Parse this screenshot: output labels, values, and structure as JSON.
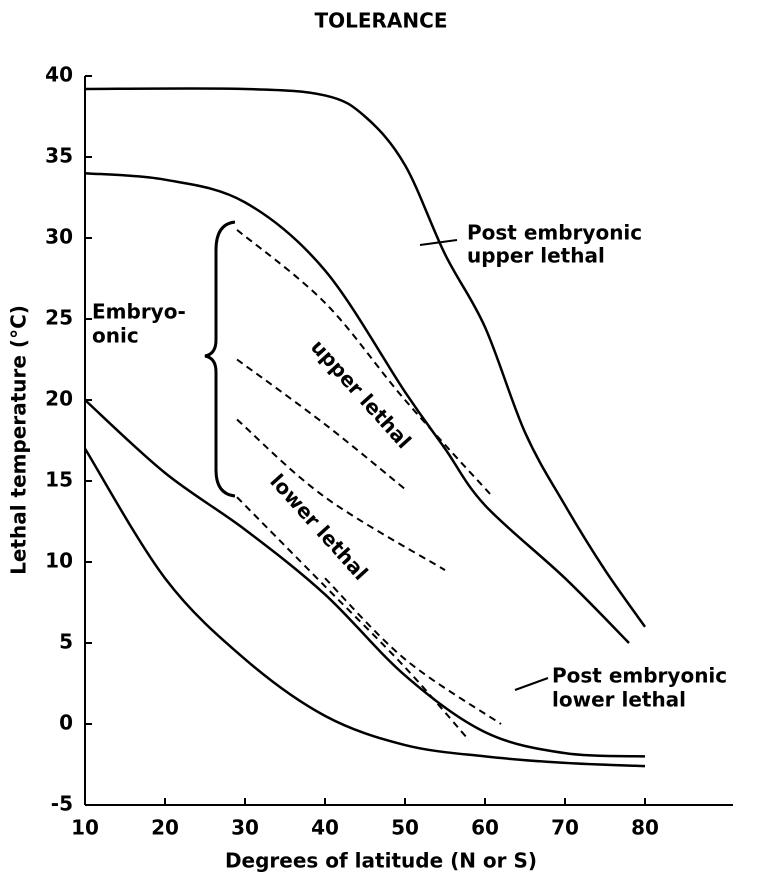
{
  "chart_data": {
    "type": "line",
    "title": "TOLERANCE",
    "x_label": "Degrees of latitude  (N or S)",
    "y_label": "Lethal temperature (°C)",
    "xlim": [
      10,
      91
    ],
    "ylim": [
      -5,
      40
    ],
    "xticks": [
      10,
      20,
      30,
      40,
      50,
      60,
      70,
      80
    ],
    "yticks": [
      -5,
      0,
      5,
      10,
      15,
      20,
      25,
      30,
      35,
      40
    ],
    "color": "#000000",
    "series": [
      {
        "x": [
          10,
          30,
          40,
          45,
          50,
          55,
          60,
          65,
          70,
          75,
          80
        ],
        "values": [
          39.2,
          39.2,
          38.8,
          37.5,
          34.5,
          29,
          24.5,
          18,
          13.5,
          9.5,
          6
        ],
        "dashed": false
      },
      {
        "x": [
          10,
          20,
          30,
          40,
          50,
          55,
          60,
          70,
          78
        ],
        "values": [
          34,
          33.6,
          32.2,
          28,
          20.5,
          17,
          13.5,
          9,
          5
        ],
        "dashed": false
      },
      {
        "x": [
          10,
          20,
          30,
          40,
          50,
          60,
          70,
          80
        ],
        "values": [
          20,
          15.5,
          12,
          8,
          3,
          -0.5,
          -1.8,
          -2
        ],
        "dashed": false
      },
      {
        "x": [
          10,
          20,
          30,
          40,
          50,
          60,
          70,
          80
        ],
        "values": [
          17,
          9,
          4,
          0.5,
          -1.3,
          -2,
          -2.4,
          -2.6
        ],
        "dashed": false
      },
      {
        "x": [
          29,
          40,
          50,
          61
        ],
        "values": [
          30.5,
          26,
          20,
          14
        ],
        "dashed": true
      },
      {
        "x": [
          29,
          40,
          50
        ],
        "values": [
          22.5,
          18.5,
          14.5
        ],
        "dashed": true
      },
      {
        "x": [
          29,
          40,
          55
        ],
        "values": [
          18.8,
          14,
          9.5
        ],
        "dashed": true
      },
      {
        "x": [
          29,
          40,
          50,
          58
        ],
        "values": [
          14,
          8.5,
          3.5,
          -1
        ],
        "dashed": true
      },
      {
        "x": [
          40,
          50,
          62
        ],
        "values": [
          9,
          4,
          0
        ],
        "dashed": true
      }
    ],
    "annotations": [
      "Post embryonic",
      "upper lethal",
      "Embryo-",
      "onic",
      "upper lethal",
      "lower lethal",
      "Post embryonic",
      "lower lethal"
    ]
  }
}
